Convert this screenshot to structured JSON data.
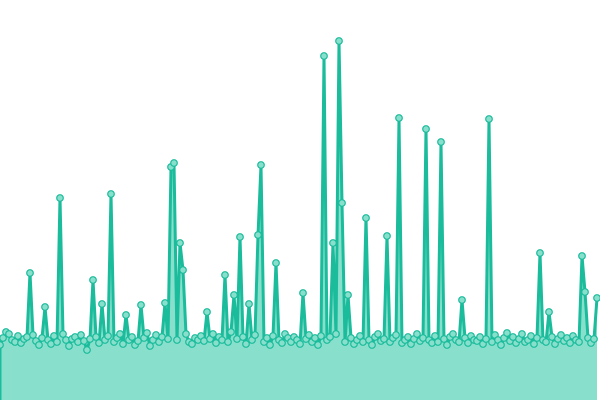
{
  "chart_data": {
    "type": "area",
    "title": "",
    "xlabel": "",
    "ylabel": "",
    "ylim": [
      0,
      400
    ],
    "xlim": [
      0,
      200
    ],
    "grid": false,
    "legend": "none",
    "colors": {
      "line": "#1abc9c",
      "fill": "#88dfcc",
      "marker_fill": "#88dfcc",
      "marker_stroke": "#1abc9c"
    },
    "series": [
      {
        "values": [
          55,
          62,
          68,
          66,
          60,
          58,
          64,
          57,
          61,
          63,
          127,
          65,
          59,
          55,
          62,
          93,
          60,
          56,
          64,
          58,
          202,
          66,
          60,
          54,
          61,
          63,
          58,
          65,
          59,
          50,
          61,
          120,
          63,
          57,
          96,
          60,
          64,
          206,
          58,
          62,
          66,
          56,
          85,
          60,
          63,
          55,
          59,
          95,
          62,
          67,
          54,
          60,
          65,
          58,
          63,
          97,
          61,
          233,
          237,
          60,
          157,
          130,
          66,
          58,
          56,
          62,
          60,
          64,
          59,
          88,
          61,
          66,
          57,
          63,
          60,
          125,
          58,
          68,
          105,
          61,
          163,
          63,
          56,
          96,
          60,
          65,
          165,
          235,
          58,
          62,
          55,
          64,
          137,
          60,
          57,
          66,
          62,
          58,
          63,
          60,
          56,
          107,
          61,
          65,
          58,
          62,
          55,
          64,
          344,
          60,
          63,
          157,
          66,
          359,
          197,
          58,
          105,
          62,
          56,
          60,
          64,
          58,
          182,
          60,
          55,
          63,
          66,
          59,
          61,
          164,
          58,
          62,
          65,
          282,
          57,
          60,
          63,
          56,
          61,
          66,
          59,
          62,
          271,
          60,
          57,
          64,
          58,
          258,
          61,
          55,
          63,
          66,
          60,
          58,
          100,
          62,
          57,
          64,
          60,
          59,
          63,
          56,
          61,
          281,
          58,
          65,
          60,
          55,
          62,
          67,
          59,
          63,
          57,
          61,
          66,
          58,
          60,
          64,
          56,
          62,
          147,
          60,
          58,
          88,
          63,
          56,
          61,
          65,
          59,
          62,
          57,
          64,
          60,
          58,
          144,
          108,
          62,
          57,
          61,
          102
        ]
      }
    ]
  }
}
